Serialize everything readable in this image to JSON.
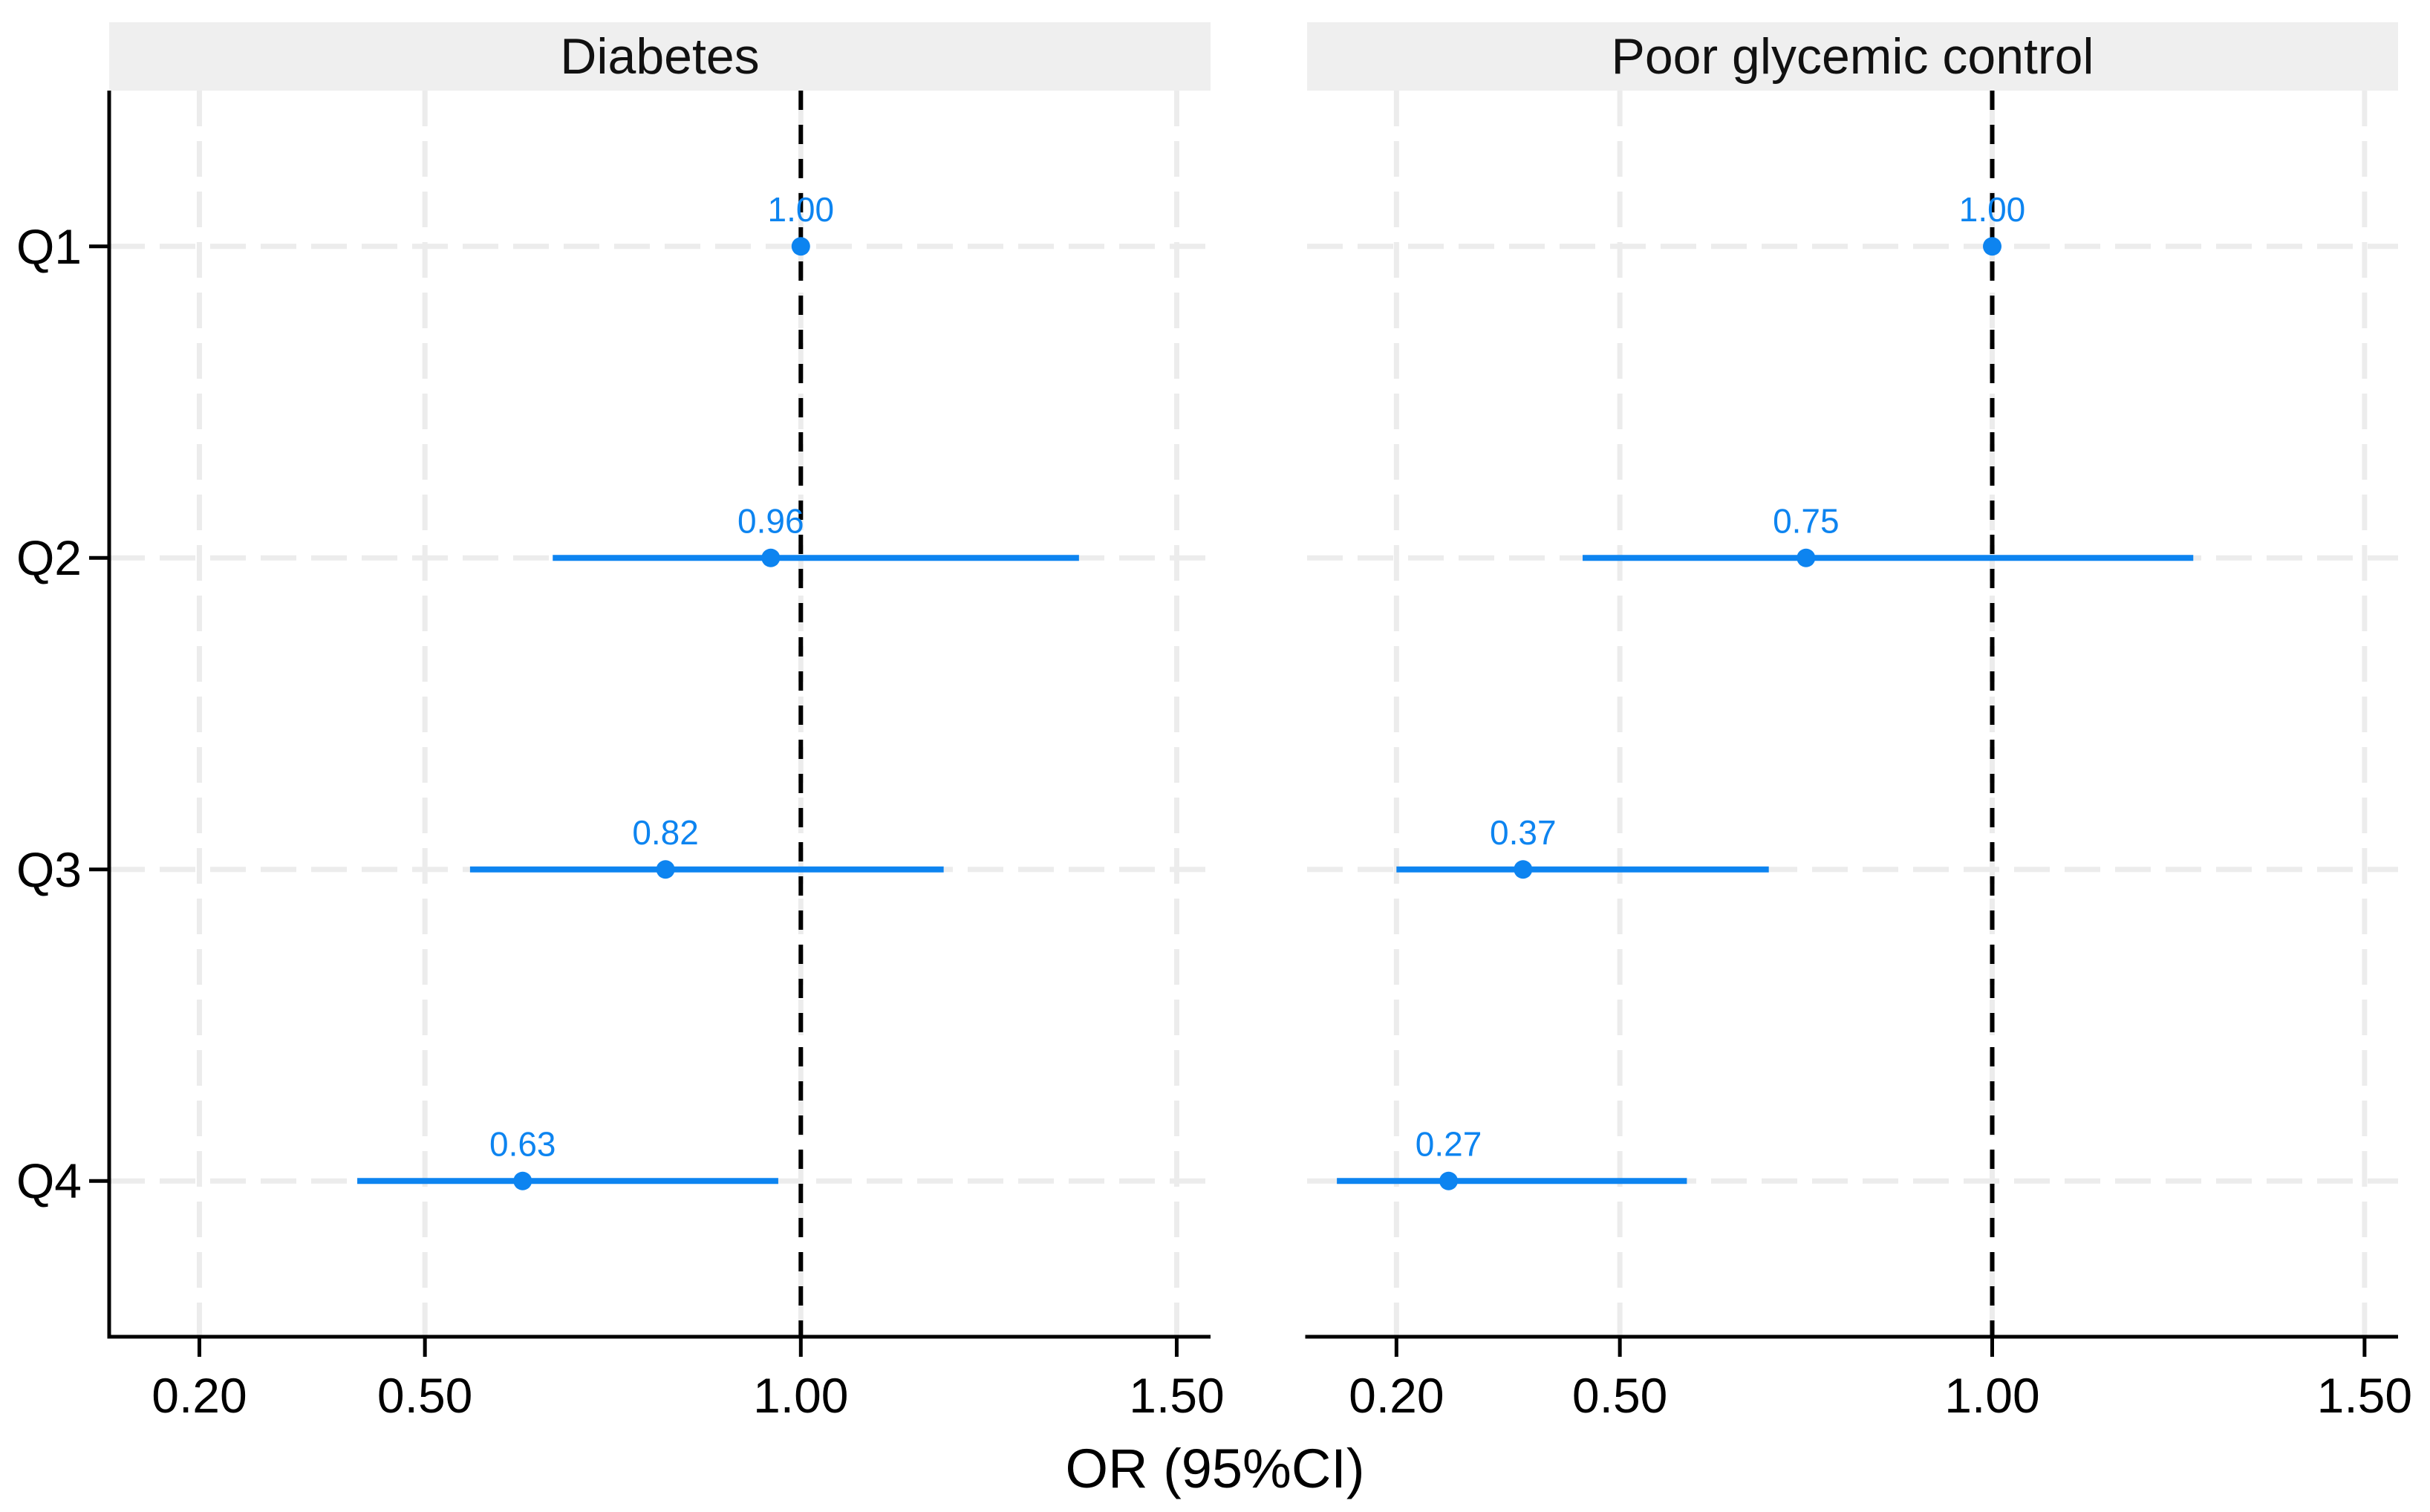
{
  "chart_data": {
    "type": "forest",
    "title": "",
    "xlabel": "OR (95%CI)",
    "ylabel": "",
    "xlim": [
      0.08,
      1.545
    ],
    "x_ticks": [
      0.2,
      0.5,
      1.0,
      1.5
    ],
    "x_tick_labels": [
      "0.20",
      "0.50",
      "1.00",
      "1.50"
    ],
    "categories": [
      "Q1",
      "Q2",
      "Q3",
      "Q4"
    ],
    "reference_line": 1.0,
    "grid": "dashed-vertical-and-horizontal",
    "legend": "none",
    "panels": [
      {
        "title": "Diabetes",
        "rows": [
          {
            "category": "Q1",
            "or": 1.0,
            "label": "1.00",
            "ci_low": null,
            "ci_high": null
          },
          {
            "category": "Q2",
            "or": 0.96,
            "label": "0.96",
            "ci_low": 0.67,
            "ci_high": 1.37
          },
          {
            "category": "Q3",
            "or": 0.82,
            "label": "0.82",
            "ci_low": 0.56,
            "ci_high": 1.19
          },
          {
            "category": "Q4",
            "or": 0.63,
            "label": "0.63",
            "ci_low": 0.41,
            "ci_high": 0.97
          }
        ]
      },
      {
        "title": "Poor glycemic control",
        "rows": [
          {
            "category": "Q1",
            "or": 1.0,
            "label": "1.00",
            "ci_low": null,
            "ci_high": null
          },
          {
            "category": "Q2",
            "or": 0.75,
            "label": "0.75",
            "ci_low": 0.45,
            "ci_high": 1.27
          },
          {
            "category": "Q3",
            "or": 0.37,
            "label": "0.37",
            "ci_low": 0.2,
            "ci_high": 0.7
          },
          {
            "category": "Q4",
            "or": 0.27,
            "label": "0.27",
            "ci_low": 0.12,
            "ci_high": 0.59
          }
        ]
      }
    ],
    "colors": {
      "point": "#0d84f0",
      "ci_line": "#0d84f0",
      "value_label": "#0d84f0",
      "reference_line": "#000000",
      "gridline": "#ececec",
      "strip_background": "#efefef",
      "axis": "#000000",
      "text": "#000000"
    }
  }
}
